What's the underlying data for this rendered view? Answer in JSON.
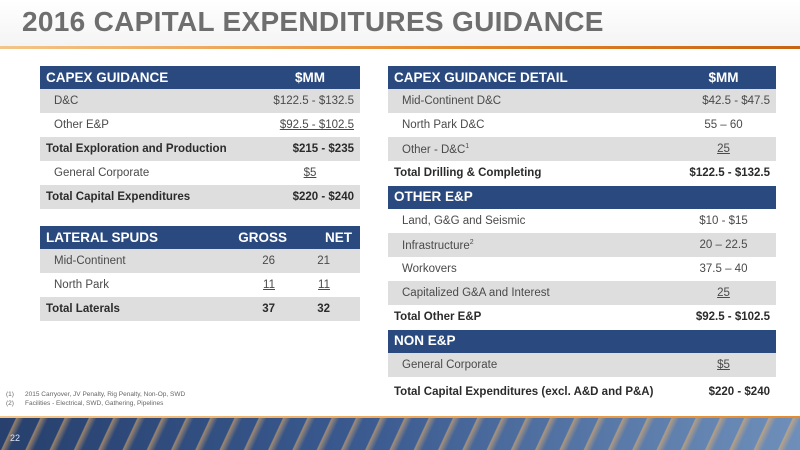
{
  "slide": {
    "title": "2016 CAPITAL EXPENDITURES GUIDANCE",
    "page_number": "22"
  },
  "capex_guidance": {
    "header": {
      "label": "CAPEX GUIDANCE",
      "value": "$MM"
    },
    "rows": [
      {
        "label": "D&C",
        "value": "$122.5 - $132.5"
      },
      {
        "label": "Other E&P",
        "value": "$92.5 - $102.5"
      },
      {
        "label": "Total Exploration and Production",
        "value": "$215 - $235"
      },
      {
        "label": "General Corporate",
        "value": "$5"
      },
      {
        "label": "Total Capital Expenditures",
        "value": "$220 - $240"
      }
    ]
  },
  "lateral_spuds": {
    "header": {
      "label": "LATERAL SPUDS",
      "gross": "GROSS",
      "net": "NET"
    },
    "rows": [
      {
        "label": "Mid-Continent",
        "gross": "26",
        "net": "21"
      },
      {
        "label": "North Park",
        "gross": "11",
        "net": "11"
      },
      {
        "label": "Total Laterals",
        "gross": "37",
        "net": "32"
      }
    ]
  },
  "capex_detail": {
    "header": {
      "label": "CAPEX GUIDANCE DETAIL",
      "value": "$MM"
    },
    "dc_rows": [
      {
        "label": "Mid-Continent D&C",
        "value": "$42.5 - $47.5"
      },
      {
        "label": "North Park D&C",
        "value": "55 – 60"
      },
      {
        "label": "Other - D&C",
        "sup": "1",
        "value": "25"
      },
      {
        "label": "Total Drilling & Completing",
        "value": "$122.5 - $132.5"
      }
    ],
    "other_ep_header": "OTHER E&P",
    "other_ep_rows": [
      {
        "label": "Land, G&G and Seismic",
        "value": "$10 - $15"
      },
      {
        "label": "Infrastructure",
        "sup": "2",
        "value": "20 – 22.5"
      },
      {
        "label": "Workovers",
        "value": "37.5 – 40"
      },
      {
        "label": "Capitalized G&A and Interest",
        "value": "25"
      },
      {
        "label": "Total Other E&P",
        "value": "$92.5 - $102.5"
      }
    ],
    "non_ep_header": "NON E&P",
    "non_ep_rows": [
      {
        "label": "General Corporate",
        "value": "$5"
      },
      {
        "label": "Total Capital Expenditures (excl. A&D and P&A)",
        "value": "$220 - $240"
      }
    ]
  },
  "footnotes": [
    {
      "num": "(1)",
      "text": "2015 Carryover, JV Penalty, Rig Penalty, Non-Op, SWD"
    },
    {
      "num": "(2)",
      "text": "Facilities - Electrical, SWD, Gathering, Pipelines"
    }
  ]
}
